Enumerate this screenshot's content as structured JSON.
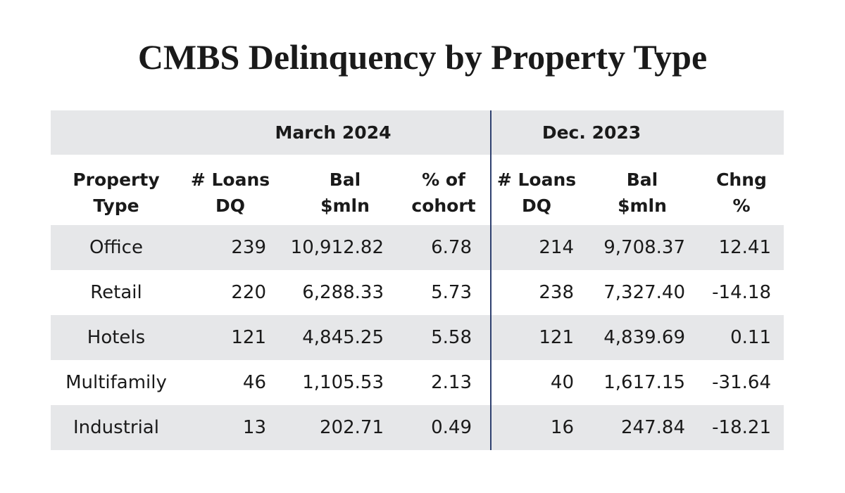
{
  "header": {
    "title": "CMBS Delinquency by Property Type"
  },
  "table": {
    "groups": [
      "March 2024",
      "Dec. 2023"
    ],
    "columns": [
      [
        "Property",
        "Type"
      ],
      [
        "# Loans",
        "DQ"
      ],
      [
        "Bal",
        "$mln"
      ],
      [
        "% of",
        "cohort"
      ],
      [
        "# Loans",
        "DQ"
      ],
      [
        "Bal",
        "$mln"
      ],
      [
        "Chng",
        "%"
      ]
    ],
    "rows": [
      [
        "Office",
        "239",
        "10,912.82",
        "6.78",
        "214",
        "9,708.37",
        "12.41"
      ],
      [
        "Retail",
        "220",
        "6,288.33",
        "5.73",
        "238",
        "7,327.40",
        "-14.18"
      ],
      [
        "Hotels",
        "121",
        "4,845.25",
        "5.58",
        "121",
        "4,839.69",
        "0.11"
      ],
      [
        "Multifamily",
        "46",
        "1,105.53",
        "2.13",
        "40",
        "1,617.15",
        "-31.64"
      ],
      [
        "Industrial",
        "13",
        "202.71",
        "0.49",
        "16",
        "247.84",
        "-18.21"
      ]
    ]
  }
}
